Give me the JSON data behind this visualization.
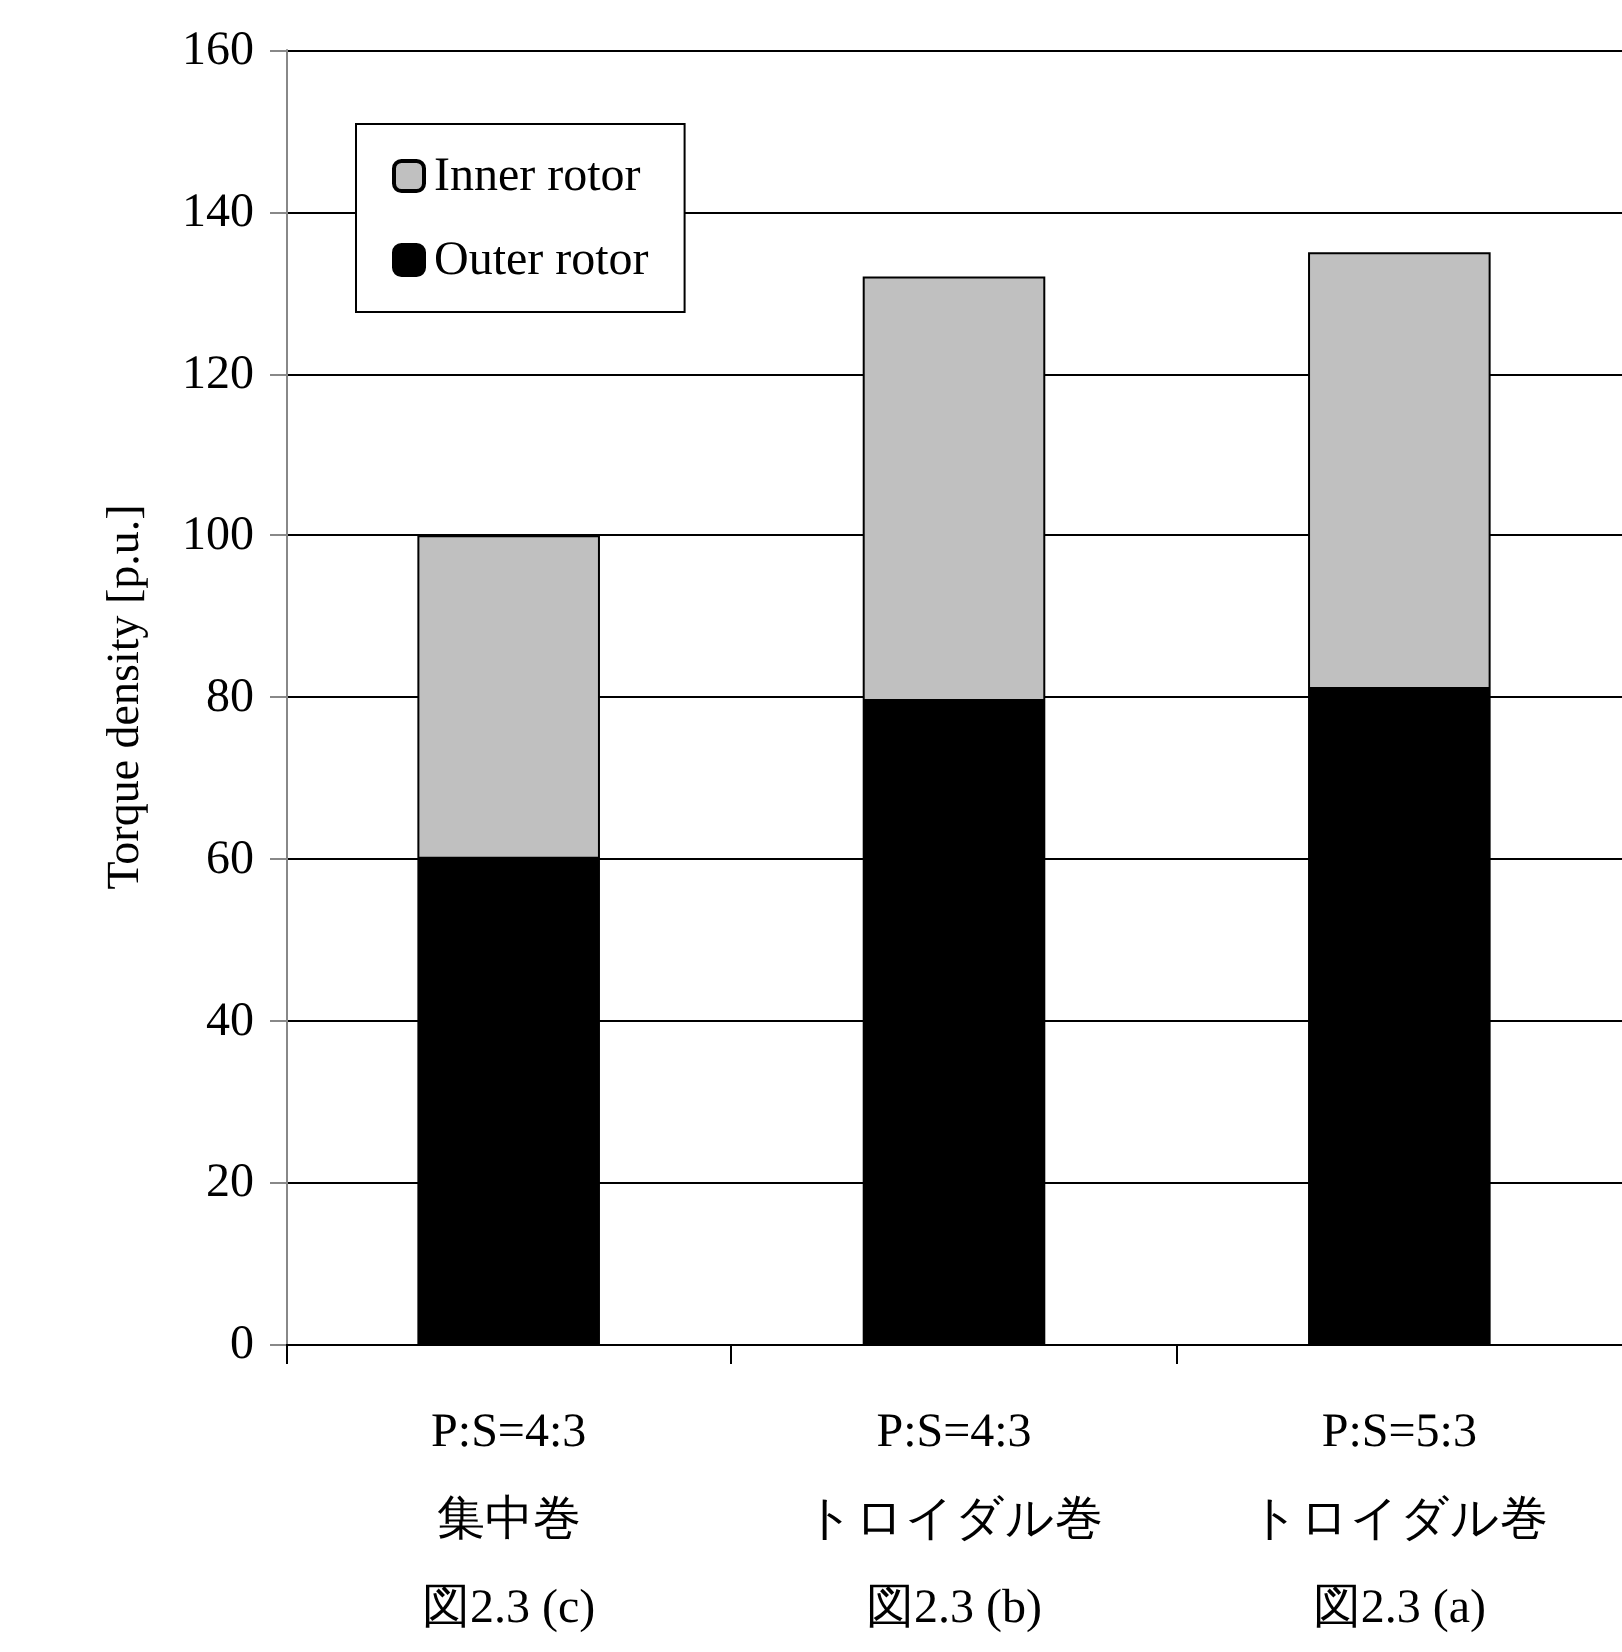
{
  "chart_data": {
    "type": "bar",
    "stacked": true,
    "ylabel": "Torque density [p.u.]",
    "categories": [
      "P:S=4:3\n集中巻図2.3 (c)",
      "P:S=4:3\nトロイダル巻図2.3 (b)",
      "P:S=5:3\nトロイダル巻図2.3 (a)"
    ],
    "series": [
      {
        "name": "Outer rotor",
        "color": "#000000",
        "values": [
          60,
          79.5,
          81
        ]
      },
      {
        "name": "Inner rotor",
        "color": "#c0c0c0",
        "values": [
          40,
          52.5,
          54
        ]
      }
    ],
    "ylim": [
      0,
      160
    ],
    "yticks": [
      0,
      20,
      40,
      60,
      80,
      100,
      120,
      140,
      160
    ],
    "grid": "y",
    "legend": "top left"
  }
}
